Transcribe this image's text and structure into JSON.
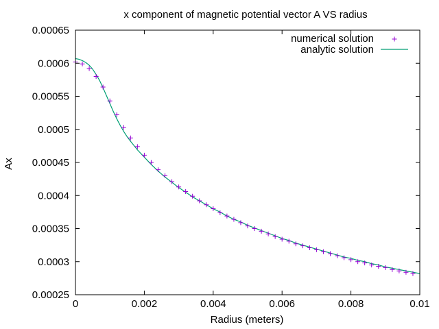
{
  "chart_data": {
    "type": "line",
    "title": "x component of magnetic potential vector A VS radius",
    "xlabel": "Radius (meters)",
    "ylabel": "Ax",
    "xlim": [
      0,
      0.01
    ],
    "ylim": [
      0.00025,
      0.00065
    ],
    "xticks": [
      0,
      0.002,
      0.004,
      0.006,
      0.008,
      0.01
    ],
    "xtick_labels": [
      "0",
      "0.002",
      "0.004",
      "0.006",
      "0.008",
      "0.01"
    ],
    "yticks": [
      0.00025,
      0.0003,
      0.00035,
      0.0004,
      0.00045,
      0.0005,
      0.00055,
      0.0006,
      0.00065
    ],
    "ytick_labels": [
      "0.00025",
      "0.0003",
      "0.00035",
      "0.0004",
      "0.00045",
      "0.0005",
      "0.00055",
      "0.0006",
      "0.00065"
    ],
    "grid": false,
    "legend_position": "top-right",
    "series": [
      {
        "name": "numerical solution",
        "style": "points",
        "marker": "+",
        "color": "#9400d3",
        "x": [
          0,
          0.0002,
          0.0004,
          0.0006,
          0.0008,
          0.001,
          0.0012,
          0.0014,
          0.0016,
          0.0018,
          0.002,
          0.0022,
          0.0024,
          0.0026,
          0.0028,
          0.003,
          0.0032,
          0.0034,
          0.0036,
          0.0038,
          0.004,
          0.0042,
          0.0044,
          0.0046,
          0.0048,
          0.005,
          0.0052,
          0.0054,
          0.0056,
          0.0058,
          0.006,
          0.0062,
          0.0064,
          0.0066,
          0.0068,
          0.007,
          0.0072,
          0.0074,
          0.0076,
          0.0078,
          0.008,
          0.0082,
          0.0084,
          0.0086,
          0.0088,
          0.009,
          0.0092,
          0.0094,
          0.0096,
          0.0098
        ],
        "y": [
          0.000602,
          0.000599,
          0.000592,
          0.00058,
          0.000564,
          0.000543,
          0.000522,
          0.000503,
          0.000487,
          0.000474,
          0.000461,
          0.00045,
          0.000439,
          0.00043,
          0.000421,
          0.000413,
          0.000406,
          0.000399,
          0.000392,
          0.000386,
          0.00038,
          0.000374,
          0.000369,
          0.000364,
          0.000359,
          0.000354,
          0.00035,
          0.000346,
          0.000342,
          0.000338,
          0.000334,
          0.000331,
          0.000327,
          0.000324,
          0.000321,
          0.000318,
          0.000315,
          0.000312,
          0.000309,
          0.000306,
          0.000303,
          0.0003,
          0.000298,
          0.000295,
          0.000293,
          0.000291,
          0.000288,
          0.000286,
          0.000284,
          0.000282
        ]
      },
      {
        "name": "analytic solution",
        "style": "line",
        "color": "#009e73",
        "x": [
          0,
          0.0001,
          0.0002,
          0.0003,
          0.0004,
          0.0005,
          0.0006,
          0.0007,
          0.0008,
          0.0009,
          0.001,
          0.0011,
          0.0012,
          0.0013,
          0.0014,
          0.0015,
          0.0016,
          0.0018,
          0.002,
          0.0022,
          0.0024,
          0.0026,
          0.0028,
          0.003,
          0.0032,
          0.0034,
          0.0036,
          0.0038,
          0.004,
          0.0042,
          0.0044,
          0.0046,
          0.0048,
          0.005,
          0.0052,
          0.0054,
          0.0056,
          0.0058,
          0.006,
          0.0062,
          0.0064,
          0.0066,
          0.0068,
          0.007,
          0.0072,
          0.0074,
          0.0076,
          0.0078,
          0.008,
          0.0082,
          0.0084,
          0.0086,
          0.0088,
          0.009,
          0.0092,
          0.0094,
          0.0096,
          0.0098,
          0.01
        ],
        "y": [
          0.000607,
          0.000606,
          0.000604,
          0.000601,
          0.000597,
          0.000591,
          0.000583,
          0.000574,
          0.000563,
          0.000551,
          0.000539,
          0.000527,
          0.000516,
          0.000506,
          0.000497,
          0.000489,
          0.000482,
          0.000469,
          0.000458,
          0.000447,
          0.000437,
          0.000428,
          0.00042,
          0.000412,
          0.000405,
          0.000398,
          0.000392,
          0.000386,
          0.00038,
          0.000375,
          0.000369,
          0.000364,
          0.00036,
          0.000355,
          0.000351,
          0.000347,
          0.000343,
          0.000339,
          0.000335,
          0.000332,
          0.000328,
          0.000325,
          0.000322,
          0.000319,
          0.000316,
          0.000313,
          0.00031,
          0.000307,
          0.000305,
          0.000302,
          0.0003,
          0.000297,
          0.000295,
          0.000292,
          0.00029,
          0.000288,
          0.000286,
          0.000284,
          0.000282
        ]
      }
    ]
  }
}
